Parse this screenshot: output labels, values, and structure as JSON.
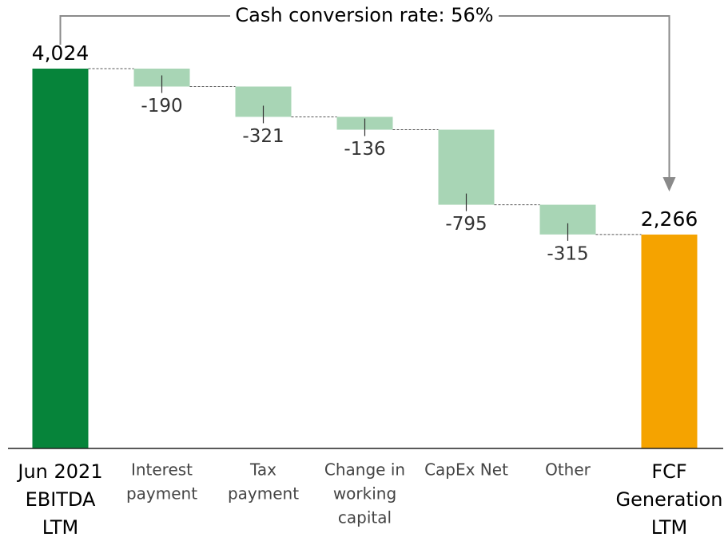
{
  "chart_data": {
    "type": "waterfall",
    "annotation": "Cash conversion rate: 56%",
    "categories": [
      [
        "Jun 2021",
        "EBITDA",
        "LTM"
      ],
      [
        "Interest",
        "payment"
      ],
      [
        "Tax",
        "payment"
      ],
      [
        "Change in",
        "working",
        "capital"
      ],
      [
        "CapEx Net"
      ],
      [
        "Other"
      ],
      [
        "FCF",
        "Generation",
        "LTM"
      ]
    ],
    "measure": [
      "total",
      "relative",
      "relative",
      "relative",
      "relative",
      "relative",
      "total"
    ],
    "values": [
      4024,
      -190,
      -321,
      -136,
      -795,
      -315,
      2266
    ],
    "value_labels": [
      "4,024",
      "-190",
      "-321",
      "-136",
      "-795",
      "-315",
      "2,266"
    ],
    "colors": {
      "start": "#06843a",
      "decrease": "#a8d5b5",
      "end": "#f5a300"
    }
  }
}
